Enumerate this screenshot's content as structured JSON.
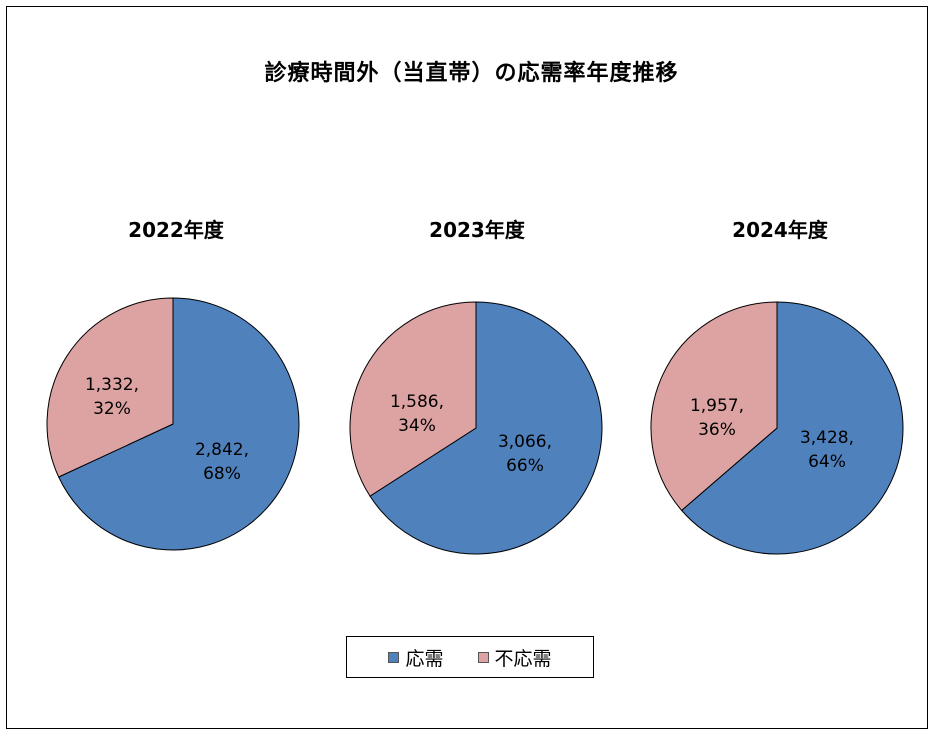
{
  "colors": {
    "response": "#4f81bd",
    "no_response": "#dda3a3",
    "outline": "#000000"
  },
  "chart_data": {
    "type": "pie",
    "title": "診療時間外（当直帯）の応需率年度推移",
    "legend": [
      "応需",
      "不応需"
    ],
    "legend_position": "bottom",
    "pies": [
      {
        "title": "2022年度",
        "slices": [
          {
            "name": "応需",
            "value": 2842,
            "percent": 68,
            "label": [
              "2,842,",
              "68%"
            ]
          },
          {
            "name": "不応需",
            "value": 1332,
            "percent": 32,
            "label": [
              "1,332,",
              "32%"
            ]
          }
        ]
      },
      {
        "title": "2023年度",
        "slices": [
          {
            "name": "応需",
            "value": 3066,
            "percent": 66,
            "label": [
              "3,066,",
              "66%"
            ]
          },
          {
            "name": "不応需",
            "value": 1586,
            "percent": 34,
            "label": [
              "1,586,",
              "34%"
            ]
          }
        ]
      },
      {
        "title": "2024年度",
        "slices": [
          {
            "name": "応需",
            "value": 3428,
            "percent": 64,
            "label": [
              "3,428,",
              "64%"
            ]
          },
          {
            "name": "不応需",
            "value": 1957,
            "percent": 36,
            "label": [
              "1,957,",
              "36%"
            ]
          }
        ]
      }
    ]
  }
}
